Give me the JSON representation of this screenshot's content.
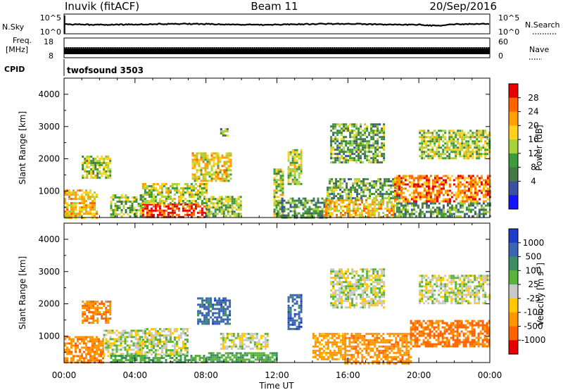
{
  "header": {
    "station": "Inuvik (fitACF)",
    "beam": "Beam 11",
    "date": "20/Sep/2016"
  },
  "summary": {
    "nsky_label": "N.Sky",
    "nsky_ticks": [
      "10^5",
      "10^0"
    ],
    "nsearch_label": "N.Search",
    "nsearch_ticks": [
      "10^5",
      "10^0"
    ],
    "freq_label": "Freq.",
    "freq_unit": "[MHz]",
    "freq_ticks": [
      "18",
      "8"
    ],
    "nave_label": "Nave",
    "nave_ticks": [
      "60",
      "0"
    ],
    "cpid_label": "CPID",
    "cpid_value": "twofsound 3503"
  },
  "chart_data": [
    {
      "type": "heatmap",
      "name": "power",
      "xlabel": "",
      "ylabel": "Slant Range [km]",
      "x_ticks": [
        "00:00",
        "04:00",
        "08:00",
        "12:00",
        "16:00",
        "20:00",
        "00:00"
      ],
      "x_hours": [
        0,
        4,
        8,
        12,
        16,
        20,
        24
      ],
      "xlim": [
        0,
        24
      ],
      "y_ticks": [
        1000,
        2000,
        3000,
        4000
      ],
      "ylim": [
        180,
        4500
      ],
      "colorbar_label": "Power [dB]",
      "colorbar_ticks": [
        "28",
        "24",
        "20",
        "16",
        "12",
        "8",
        "4"
      ],
      "colorbar_colors": [
        "#e60000",
        "#ff6400",
        "#ff9f00",
        "#ffd21e",
        "#a8d23c",
        "#3c9b3c",
        "#467846",
        "#3c50a0",
        "#1414ff"
      ],
      "regions": [
        {
          "t": [
            0.0,
            1.8
          ],
          "r": [
            180,
            1050
          ],
          "v": 19
        },
        {
          "t": [
            1.0,
            2.6
          ],
          "r": [
            1400,
            2100
          ],
          "v": 14
        },
        {
          "t": [
            2.6,
            4.4
          ],
          "r": [
            200,
            900
          ],
          "v": 12
        },
        {
          "t": [
            4.4,
            8.0
          ],
          "r": [
            200,
            620
          ],
          "v": 29
        },
        {
          "t": [
            4.4,
            8.0
          ],
          "r": [
            620,
            1250
          ],
          "v": 15
        },
        {
          "t": [
            7.2,
            9.4
          ],
          "r": [
            1300,
            2200
          ],
          "v": 18
        },
        {
          "t": [
            8.0,
            10.0
          ],
          "r": [
            200,
            850
          ],
          "v": 13
        },
        {
          "t": [
            8.8,
            9.2
          ],
          "r": [
            2700,
            2950
          ],
          "v": 10
        },
        {
          "t": [
            11.8,
            12.3
          ],
          "r": [
            200,
            1700
          ],
          "v": 14
        },
        {
          "t": [
            12.6,
            13.4
          ],
          "r": [
            1200,
            2300
          ],
          "v": 15
        },
        {
          "t": [
            12.0,
            15.0
          ],
          "r": [
            200,
            800
          ],
          "v": 9
        },
        {
          "t": [
            14.6,
            18.6
          ],
          "r": [
            200,
            750
          ],
          "v": 20
        },
        {
          "t": [
            14.8,
            19.0
          ],
          "r": [
            800,
            1400
          ],
          "v": 10
        },
        {
          "t": [
            15.0,
            18.0
          ],
          "r": [
            1900,
            3100
          ],
          "v": 10
        },
        {
          "t": [
            18.6,
            24.0
          ],
          "r": [
            700,
            1500
          ],
          "v": 24
        },
        {
          "t": [
            18.6,
            24.0
          ],
          "r": [
            200,
            650
          ],
          "v": 9
        },
        {
          "t": [
            20.0,
            24.0
          ],
          "r": [
            2000,
            2900
          ],
          "v": 14
        }
      ]
    },
    {
      "type": "heatmap",
      "name": "velocity",
      "xlabel": "Time UT",
      "ylabel": "Slant Range [km]",
      "x_ticks": [
        "00:00",
        "04:00",
        "08:00",
        "12:00",
        "16:00",
        "20:00",
        "00:00"
      ],
      "x_hours": [
        0,
        4,
        8,
        12,
        16,
        20,
        24
      ],
      "xlim": [
        0,
        24
      ],
      "y_ticks": [
        1000,
        2000,
        3000,
        4000
      ],
      "ylim": [
        180,
        4500
      ],
      "colorbar_label": "Velocity [m s^-1]",
      "colorbar_ticks": [
        "1000",
        "500",
        "100",
        "25",
        "-25",
        "-100",
        "-500",
        "-1000"
      ],
      "colorbar_colors": [
        "#1e3cc8",
        "#3c64b4",
        "#3c8c64",
        "#5ab43c",
        "#c8c8c8",
        "#ffc800",
        "#ff9600",
        "#ff6400",
        "#e60000"
      ],
      "regions": [
        {
          "t": [
            0.0,
            2.2
          ],
          "r": [
            180,
            1000
          ],
          "v": -420
        },
        {
          "t": [
            1.0,
            2.6
          ],
          "r": [
            1400,
            2100
          ],
          "v": -460
        },
        {
          "t": [
            2.2,
            4.4
          ],
          "r": [
            400,
            1200
          ],
          "v": 0
        },
        {
          "t": [
            4.4,
            7.0
          ],
          "r": [
            400,
            1250
          ],
          "v": 0
        },
        {
          "t": [
            2.6,
            8.0
          ],
          "r": [
            180,
            420
          ],
          "v": 80
        },
        {
          "t": [
            7.5,
            9.3
          ],
          "r": [
            1400,
            2200
          ],
          "v": 700
        },
        {
          "t": [
            8.8,
            11.5
          ],
          "r": [
            600,
            1100
          ],
          "v": 0
        },
        {
          "t": [
            8.0,
            12.0
          ],
          "r": [
            180,
            500
          ],
          "v": 90
        },
        {
          "t": [
            12.6,
            13.4
          ],
          "r": [
            1200,
            2300
          ],
          "v": 800
        },
        {
          "t": [
            14.0,
            15.8
          ],
          "r": [
            300,
            1100
          ],
          "v": -150
        },
        {
          "t": [
            15.8,
            19.5
          ],
          "r": [
            180,
            1100
          ],
          "v": -400
        },
        {
          "t": [
            15.0,
            18.0
          ],
          "r": [
            1900,
            3100
          ],
          "v": 0
        },
        {
          "t": [
            19.5,
            24.0
          ],
          "r": [
            700,
            1500
          ],
          "v": -600
        },
        {
          "t": [
            20.0,
            24.0
          ],
          "r": [
            2000,
            2900
          ],
          "v": 0
        }
      ]
    }
  ]
}
